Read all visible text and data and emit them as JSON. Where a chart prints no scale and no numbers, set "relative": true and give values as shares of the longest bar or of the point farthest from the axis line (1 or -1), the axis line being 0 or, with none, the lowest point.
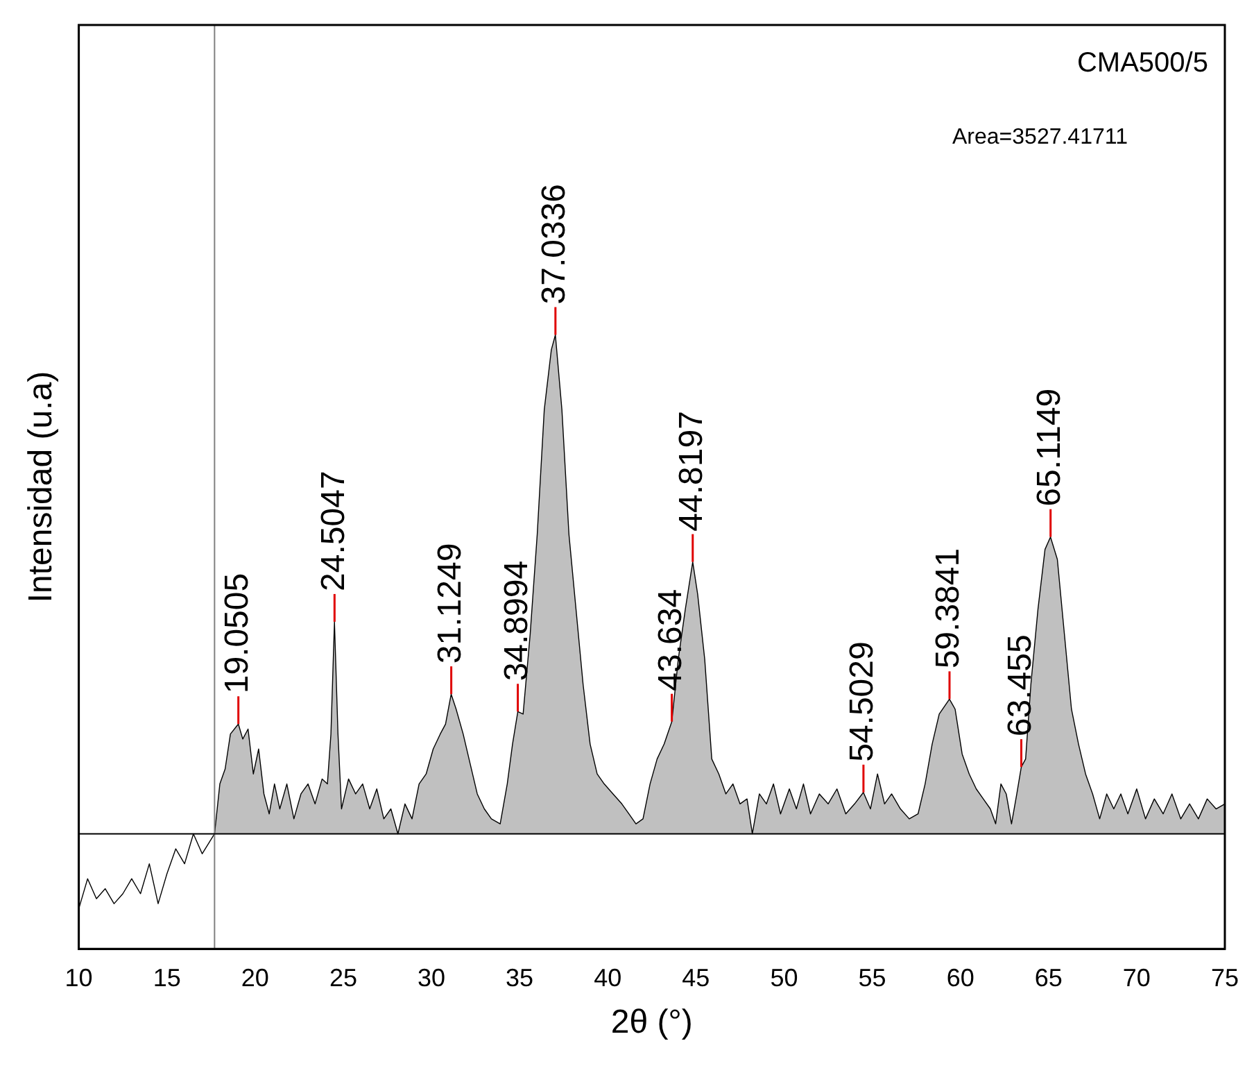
{
  "chart_data": {
    "type": "area",
    "xlabel": "2θ (°)",
    "ylabel": "Intensidad (u.a)",
    "relative": true,
    "grid": false,
    "legend": false,
    "xlim": [
      10,
      75
    ],
    "xticks": [
      10,
      15,
      20,
      25,
      30,
      35,
      40,
      45,
      50,
      55,
      60,
      65,
      70,
      75
    ],
    "series": [
      {
        "type": "line",
        "color": "#000000",
        "x": [
          10,
          10.5,
          11,
          11.5,
          12,
          12.5,
          13,
          13.5,
          14,
          14.5,
          15,
          15.5,
          16,
          16.5,
          17,
          17.7
        ],
        "values": [
          -0.15,
          -0.09,
          -0.13,
          -0.11,
          -0.14,
          -0.12,
          -0.09,
          -0.12,
          -0.06,
          -0.14,
          -0.08,
          -0.03,
          -0.06,
          0.0,
          -0.04,
          0.0
        ]
      },
      {
        "type": "area",
        "color": "#c0c0c0",
        "x": [
          17.7,
          18.0,
          18.3,
          18.6,
          19.05,
          19.3,
          19.6,
          19.9,
          20.2,
          20.5,
          20.8,
          21.1,
          21.4,
          21.8,
          22.2,
          22.6,
          23.0,
          23.4,
          23.8,
          24.1,
          24.3,
          24.5,
          24.7,
          24.9,
          25.3,
          25.7,
          26.1,
          26.5,
          26.9,
          27.3,
          27.7,
          28.1,
          28.5,
          28.9,
          29.3,
          29.7,
          30.1,
          30.5,
          30.8,
          31.12,
          31.4,
          31.8,
          32.2,
          32.6,
          33.0,
          33.4,
          33.9,
          34.3,
          34.6,
          34.9,
          35.2,
          35.6,
          36.0,
          36.4,
          36.8,
          37.03,
          37.4,
          37.8,
          38.2,
          38.6,
          39.0,
          39.4,
          39.8,
          40.3,
          40.8,
          41.2,
          41.6,
          42.0,
          42.4,
          42.8,
          43.2,
          43.634,
          44.0,
          44.4,
          44.82,
          45.1,
          45.5,
          45.9,
          46.3,
          46.7,
          47.1,
          47.5,
          47.9,
          48.2,
          48.6,
          49.0,
          49.4,
          49.8,
          50.3,
          50.7,
          51.1,
          51.5,
          52.0,
          52.5,
          53.0,
          53.5,
          54.0,
          54.5,
          54.9,
          55.3,
          55.7,
          56.1,
          56.6,
          57.1,
          57.6,
          58.0,
          58.4,
          58.8,
          59.38,
          59.7,
          60.1,
          60.5,
          60.9,
          61.3,
          61.7,
          62.0,
          62.3,
          62.6,
          62.9,
          63.2,
          63.455,
          63.7,
          64.0,
          64.4,
          64.8,
          65.11,
          65.5,
          65.9,
          66.3,
          66.7,
          67.1,
          67.5,
          67.9,
          68.3,
          68.7,
          69.1,
          69.5,
          70.0,
          70.5,
          71.0,
          71.5,
          72.0,
          72.5,
          73.0,
          73.5,
          74.0,
          74.5,
          75.0
        ],
        "values": [
          0.0,
          0.1,
          0.13,
          0.2,
          0.22,
          0.19,
          0.21,
          0.12,
          0.17,
          0.08,
          0.04,
          0.1,
          0.05,
          0.1,
          0.03,
          0.08,
          0.1,
          0.06,
          0.11,
          0.1,
          0.2,
          0.425,
          0.2,
          0.05,
          0.11,
          0.08,
          0.1,
          0.05,
          0.09,
          0.03,
          0.05,
          0.0,
          0.06,
          0.03,
          0.1,
          0.12,
          0.17,
          0.2,
          0.22,
          0.28,
          0.25,
          0.2,
          0.14,
          0.08,
          0.05,
          0.03,
          0.02,
          0.1,
          0.18,
          0.245,
          0.24,
          0.4,
          0.6,
          0.85,
          0.97,
          1.0,
          0.85,
          0.6,
          0.45,
          0.3,
          0.18,
          0.12,
          0.1,
          0.08,
          0.06,
          0.04,
          0.02,
          0.03,
          0.1,
          0.15,
          0.18,
          0.225,
          0.35,
          0.45,
          0.545,
          0.48,
          0.35,
          0.15,
          0.12,
          0.08,
          0.1,
          0.06,
          0.07,
          0.0,
          0.08,
          0.06,
          0.1,
          0.04,
          0.09,
          0.05,
          0.1,
          0.04,
          0.08,
          0.06,
          0.09,
          0.04,
          0.06,
          0.083,
          0.05,
          0.12,
          0.06,
          0.08,
          0.05,
          0.03,
          0.04,
          0.1,
          0.18,
          0.24,
          0.27,
          0.25,
          0.16,
          0.12,
          0.09,
          0.07,
          0.05,
          0.02,
          0.1,
          0.08,
          0.02,
          0.08,
          0.134,
          0.15,
          0.3,
          0.45,
          0.57,
          0.595,
          0.55,
          0.4,
          0.25,
          0.18,
          0.12,
          0.08,
          0.03,
          0.08,
          0.05,
          0.08,
          0.04,
          0.09,
          0.03,
          0.07,
          0.04,
          0.08,
          0.03,
          0.06,
          0.03,
          0.07,
          0.05,
          0.06
        ]
      }
    ],
    "ref_lines": [
      {
        "axis": "x",
        "value": 17.7,
        "color": "#808080"
      },
      {
        "axis": "y",
        "value": 0,
        "color": "#000000"
      }
    ],
    "annotations": [
      "CMA500/5",
      "Area=3527.41711",
      {
        "text": "19.0505",
        "x": 19.0505,
        "y": 0.22
      },
      {
        "text": "24.5047",
        "x": 24.5047,
        "y": 0.425
      },
      {
        "text": "31.1249",
        "x": 31.1249,
        "y": 0.28
      },
      {
        "text": "34.8994",
        "x": 34.8994,
        "y": 0.245
      },
      {
        "text": "37.0336",
        "x": 37.0336,
        "y": 1.0
      },
      {
        "text": "43.634",
        "x": 43.634,
        "y": 0.225
      },
      {
        "text": "44.8197",
        "x": 44.8197,
        "y": 0.545
      },
      {
        "text": "54.5029",
        "x": 54.5029,
        "y": 0.083
      },
      {
        "text": "59.3841",
        "x": 59.3841,
        "y": 0.27
      },
      {
        "text": "63.455",
        "x": 63.455,
        "y": 0.134
      },
      {
        "text": "65.1149",
        "x": 65.1149,
        "y": 0.595
      }
    ]
  }
}
